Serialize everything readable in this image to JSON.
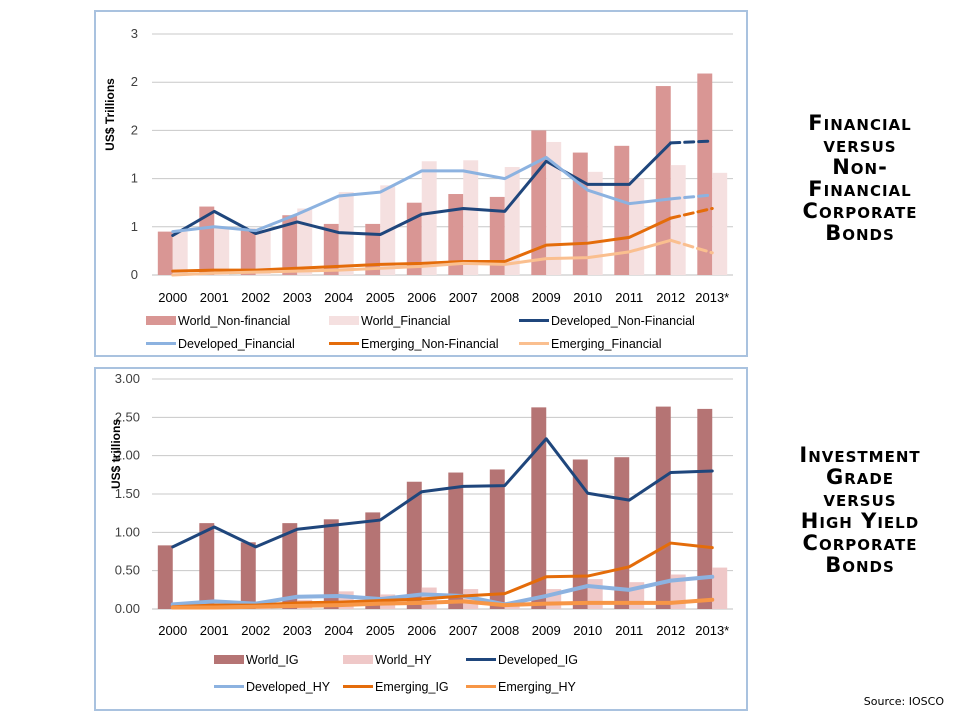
{
  "side_titles": {
    "top": [
      "Financial",
      "versus",
      "Non-",
      "Financial",
      "Corporate",
      "Bonds"
    ],
    "bottom": [
      "Investment",
      "Grade",
      "versus",
      "High Yield",
      "Corporate",
      "Bonds"
    ]
  },
  "source": "Source: IOSCO",
  "colors": {
    "world_a_top": "#d99694",
    "world_b_top": "#f5e0e0",
    "world_a_bottom": "#b57474",
    "world_b_bottom": "#efc8c8",
    "developed_a": "#1f467c",
    "developed_b": "#8cb2e0",
    "emerging_a": "#e46c0a",
    "emerging_b_top": "#fabf8f",
    "emerging_b_bottom": "#f79646",
    "grid": "#c8c8c8"
  },
  "chart_data": [
    {
      "type": "bar",
      "id": "top",
      "title": "Financial versus Non-Financial Corporate Bonds",
      "xlabel": "",
      "ylabel": "US$ Trillions",
      "ylim": [
        0,
        2.5
      ],
      "yticks": [
        0,
        0.5,
        1,
        1.5,
        2,
        2.5
      ],
      "ytick_labels": [
        "0",
        "1",
        "1",
        "2",
        "2",
        "3"
      ],
      "grid": true,
      "legend_position": "bottom",
      "categories": [
        "2000",
        "2001",
        "2002",
        "2003",
        "2004",
        "2005",
        "2006",
        "2007",
        "2008",
        "2009",
        "2010",
        "2011",
        "2012",
        "2013*"
      ],
      "bars": [
        {
          "name": "World_Non-financial",
          "color_key": "world_a_top",
          "values": [
            0.45,
            0.71,
            0.48,
            0.62,
            0.53,
            0.53,
            0.75,
            0.84,
            0.81,
            1.5,
            1.27,
            1.34,
            1.96,
            2.09
          ]
        },
        {
          "name": "World_Financial",
          "color_key": "world_b_top",
          "values": [
            0.45,
            0.5,
            0.47,
            0.69,
            0.86,
            0.93,
            1.18,
            1.19,
            1.12,
            1.38,
            1.07,
            1.0,
            1.14,
            1.06
          ]
        }
      ],
      "lines": [
        {
          "name": "Developed_Non-Financial",
          "color_key": "developed_a",
          "width": 3,
          "dashed_last": true,
          "values": [
            0.41,
            0.66,
            0.43,
            0.55,
            0.44,
            0.42,
            0.63,
            0.69,
            0.66,
            1.18,
            0.94,
            0.94,
            1.37,
            1.39
          ]
        },
        {
          "name": "Developed_Financial",
          "color_key": "developed_b",
          "width": 3,
          "dashed_last": true,
          "values": [
            0.45,
            0.5,
            0.46,
            0.63,
            0.82,
            0.86,
            1.08,
            1.08,
            1.0,
            1.22,
            0.88,
            0.74,
            0.79,
            0.83
          ]
        },
        {
          "name": "Emerging_Non-Financial",
          "color_key": "emerging_a",
          "width": 3,
          "dashed_last": true,
          "values": [
            0.04,
            0.05,
            0.05,
            0.07,
            0.09,
            0.11,
            0.12,
            0.14,
            0.14,
            0.31,
            0.33,
            0.39,
            0.59,
            0.69
          ]
        },
        {
          "name": "Emerging_Financial",
          "color_key": "emerging_b_top",
          "width": 3,
          "dashed_last": true,
          "values": [
            0.0,
            0.02,
            0.03,
            0.04,
            0.05,
            0.07,
            0.09,
            0.12,
            0.11,
            0.17,
            0.18,
            0.24,
            0.36,
            0.23
          ]
        }
      ],
      "legend": [
        {
          "name": "World_Non-financial",
          "kind": "bar",
          "color_key": "world_a_top"
        },
        {
          "name": "World_Financial",
          "kind": "bar",
          "color_key": "world_b_top"
        },
        {
          "name": "Developed_Non-Financial",
          "kind": "line",
          "color_key": "developed_a"
        },
        {
          "name": "Developed_Financial",
          "kind": "line",
          "color_key": "developed_b"
        },
        {
          "name": "Emerging_Non-Financial",
          "kind": "line",
          "color_key": "emerging_a"
        },
        {
          "name": "Emerging_Financial",
          "kind": "line",
          "color_key": "emerging_b_top"
        }
      ]
    },
    {
      "type": "bar",
      "id": "bottom",
      "title": "Investment Grade versus High Yield Corporate Bonds",
      "xlabel": "",
      "ylabel": "US$ trillions",
      "ylim": [
        0,
        3
      ],
      "yticks": [
        0,
        0.5,
        1,
        1.5,
        2,
        2.5,
        3
      ],
      "ytick_labels": [
        "0.00",
        "0.50",
        "1.00",
        "1.50",
        "2.00",
        "2.50",
        "3.00"
      ],
      "grid": true,
      "legend_position": "bottom",
      "categories": [
        "2000",
        "2001",
        "2002",
        "2003",
        "2004",
        "2005",
        "2006",
        "2007",
        "2008",
        "2009",
        "2010",
        "2011",
        "2012",
        "2013*"
      ],
      "bars": [
        {
          "name": "World_IG",
          "color_key": "world_a_bottom",
          "values": [
            0.83,
            1.12,
            0.87,
            1.12,
            1.17,
            1.26,
            1.66,
            1.78,
            1.82,
            2.63,
            1.95,
            1.98,
            2.64,
            2.61
          ]
        },
        {
          "name": "World_HY",
          "color_key": "world_b_bottom",
          "values": [
            0.04,
            0.06,
            0.05,
            0.12,
            0.23,
            0.19,
            0.28,
            0.26,
            0.09,
            0.26,
            0.39,
            0.35,
            0.45,
            0.54
          ]
        }
      ],
      "lines": [
        {
          "name": "Developed_IG",
          "color_key": "developed_a",
          "width": 3,
          "dashed_last": false,
          "values": [
            0.81,
            1.07,
            0.81,
            1.04,
            1.1,
            1.16,
            1.53,
            1.6,
            1.61,
            2.22,
            1.51,
            1.42,
            1.78,
            1.8
          ]
        },
        {
          "name": "Developed_HY",
          "color_key": "developed_b",
          "width": 4,
          "dashed_last": false,
          "values": [
            0.06,
            0.1,
            0.07,
            0.16,
            0.17,
            0.13,
            0.19,
            0.17,
            0.06,
            0.17,
            0.3,
            0.25,
            0.37,
            0.42
          ]
        },
        {
          "name": "Emerging_IG",
          "color_key": "emerging_a",
          "width": 3,
          "dashed_last": false,
          "values": [
            0.03,
            0.05,
            0.05,
            0.08,
            0.09,
            0.11,
            0.13,
            0.17,
            0.2,
            0.42,
            0.43,
            0.55,
            0.86,
            0.8
          ]
        },
        {
          "name": "Emerging_HY",
          "color_key": "emerging_b_bottom",
          "width": 4,
          "dashed_last": false,
          "values": [
            0.02,
            0.02,
            0.03,
            0.04,
            0.05,
            0.07,
            0.08,
            0.1,
            0.05,
            0.07,
            0.08,
            0.08,
            0.08,
            0.12
          ]
        }
      ],
      "legend": [
        {
          "name": "World_IG",
          "kind": "bar",
          "color_key": "world_a_bottom"
        },
        {
          "name": "World_HY",
          "kind": "bar",
          "color_key": "world_b_bottom"
        },
        {
          "name": "Developed_IG",
          "kind": "line",
          "color_key": "developed_a"
        },
        {
          "name": "Developed_HY",
          "kind": "line",
          "color_key": "developed_b"
        },
        {
          "name": "Emerging_IG",
          "kind": "line",
          "color_key": "emerging_a"
        },
        {
          "name": "Emerging_HY",
          "kind": "line",
          "color_key": "emerging_b_bottom"
        }
      ]
    }
  ]
}
